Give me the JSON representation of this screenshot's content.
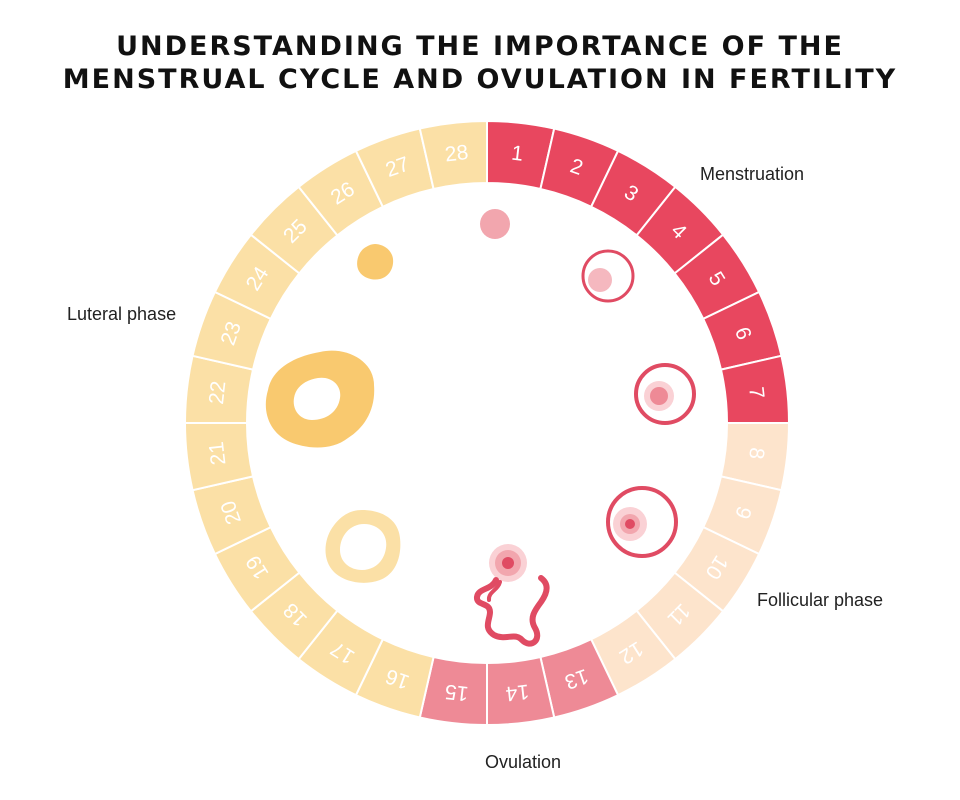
{
  "title": {
    "line1": "UNDERSTANDING THE IMPORTANCE OF THE",
    "line2": "MENSTRUAL CYCLE AND OVULATION IN FERTILITY"
  },
  "phases": [
    {
      "key": "menstruation",
      "label": "Menstruation",
      "start": 1,
      "end": 7,
      "color": "#e8475f"
    },
    {
      "key": "follicular",
      "label": "Follicular phase",
      "start": 8,
      "end": 12,
      "color": "#fde4cc"
    },
    {
      "key": "ovulation",
      "label": "Ovulation",
      "start": 13,
      "end": 15,
      "color": "#ee8a96"
    },
    {
      "key": "luteal",
      "label": "Luteral phase",
      "start": 16,
      "end": 28,
      "color": "#fbe0a6"
    }
  ],
  "days": [
    "1",
    "2",
    "3",
    "4",
    "5",
    "6",
    "7",
    "8",
    "9",
    "10",
    "11",
    "12",
    "13",
    "14",
    "15",
    "16",
    "17",
    "18",
    "19",
    "20",
    "21",
    "22",
    "23",
    "24",
    "25",
    "26",
    "27",
    "28"
  ],
  "colors": {
    "pink_dark": "#e04b63",
    "pink_light": "#f2a6ae",
    "yellow": "#f9c96f",
    "yellow_light": "#fbe0a6"
  }
}
